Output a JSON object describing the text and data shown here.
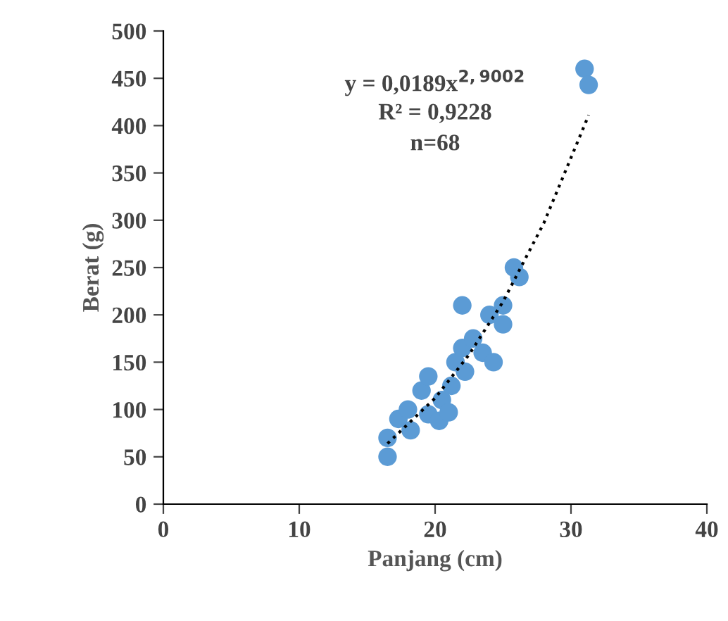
{
  "chart_data": {
    "type": "scatter",
    "xlabel": "Panjang (cm)",
    "ylabel": "Berat (g)",
    "annotations": [
      "y = 0,0189x$^{2,9002}$",
      "R² = 0,9228",
      "n=68"
    ],
    "xlim": [
      0,
      40
    ],
    "xticks": [
      0,
      10,
      20,
      30,
      40
    ],
    "ylim": [
      0,
      500
    ],
    "yticks": [
      0,
      50,
      100,
      150,
      200,
      250,
      300,
      350,
      400,
      450,
      500
    ],
    "grid": false,
    "legend": false,
    "series": [
      {
        "color": "#5b9bd5",
        "x": [
          16.5,
          16.5,
          17.3,
          18,
          18.2,
          19,
          19.5,
          19.5,
          20.3,
          20.5,
          21,
          21.2,
          21.5,
          22,
          22,
          22.2,
          22.8,
          23.5,
          24,
          24.3,
          25,
          25,
          25.8,
          26.2,
          31,
          31.3
        ],
        "values": [
          50,
          70,
          90,
          100,
          78,
          120,
          135,
          95,
          88,
          110,
          97,
          125,
          150,
          165,
          210,
          140,
          175,
          160,
          200,
          150,
          210,
          190,
          250,
          240,
          460,
          443
        ]
      },
      {
        "type": "line",
        "color": "#000000",
        "line_style": "dotted",
        "marker": "none",
        "x": [
          16.5,
          20,
          22.5,
          25,
          28,
          31.3
        ],
        "values": [
          64,
          112,
          158,
          214,
          297,
          411
        ]
      }
    ]
  }
}
